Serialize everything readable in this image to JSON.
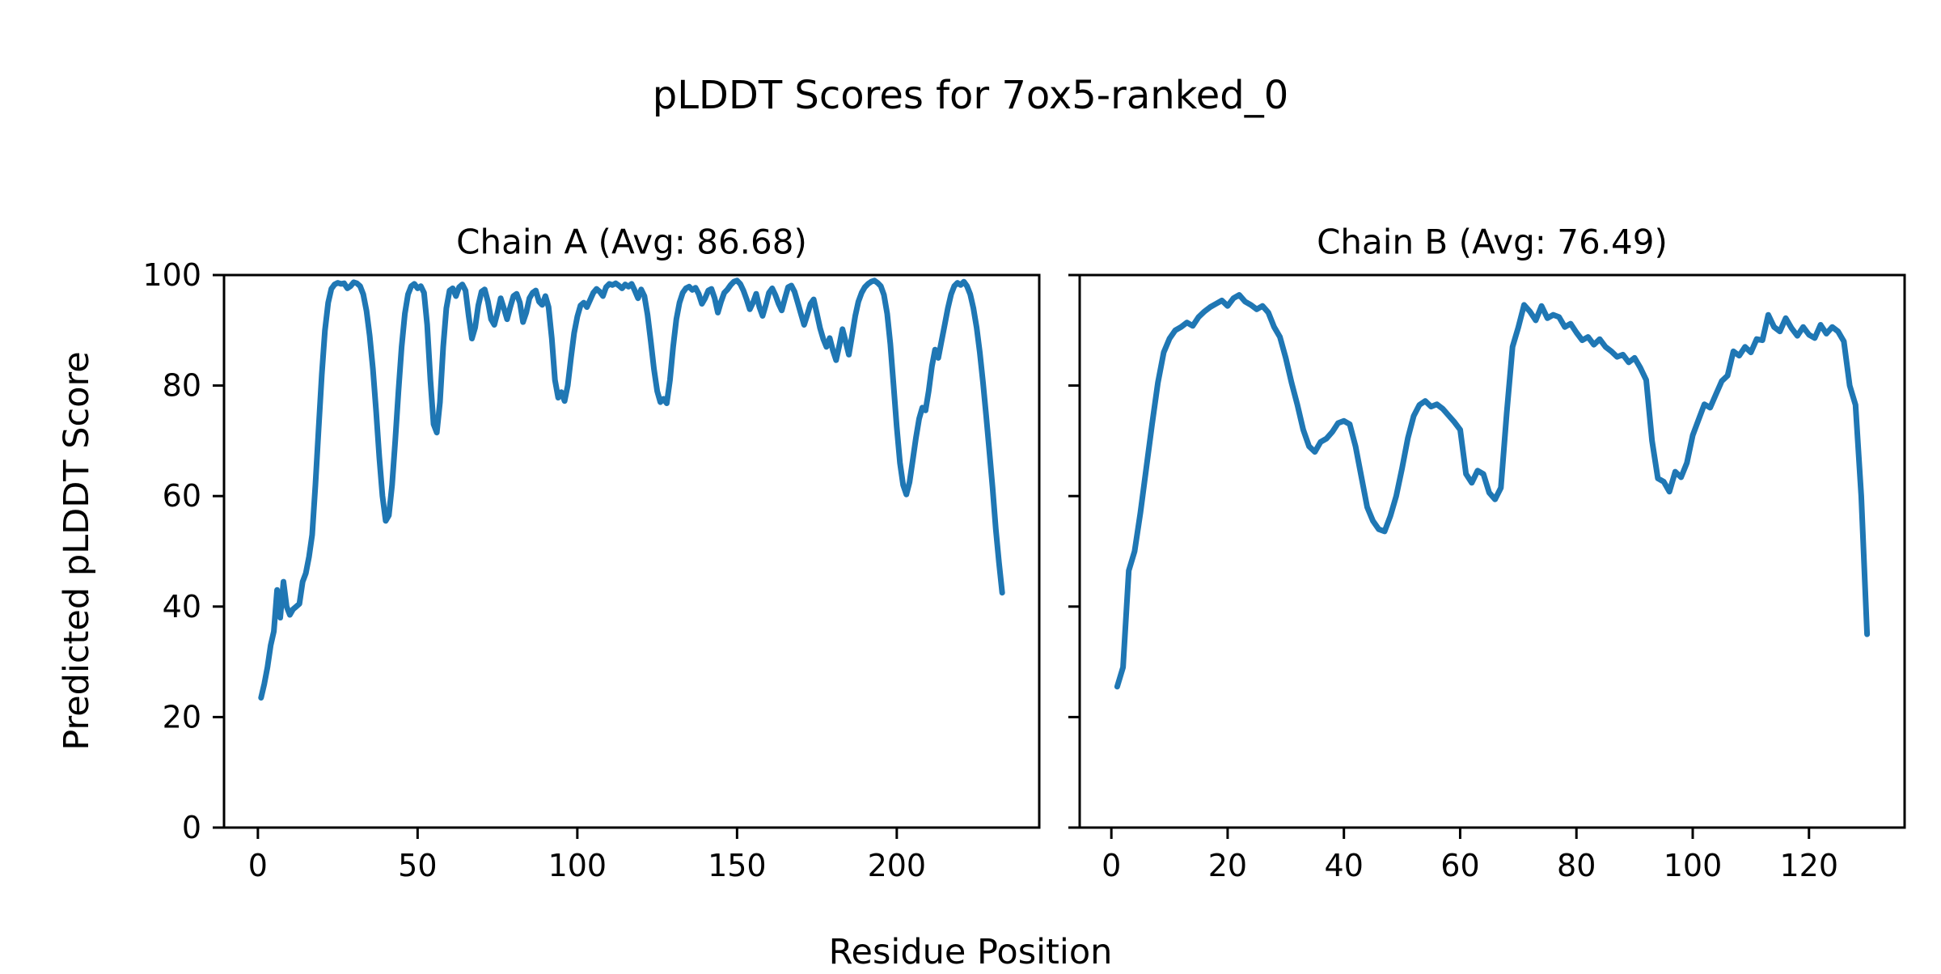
{
  "figure": {
    "suptitle": "pLDDT Scores for 7ox5-ranked_0",
    "xlabel": "Residue Position",
    "ylabel": "Predicted pLDDT Score",
    "line_color": "#1f77b4",
    "background": "#ffffff",
    "axis_color": "#000000"
  },
  "chart_data": [
    {
      "type": "line",
      "title": "Chain A (Avg: 86.68)",
      "avg": 86.68,
      "ylim": [
        0,
        100
      ],
      "yticks": [
        0,
        20,
        40,
        60,
        80,
        100
      ],
      "xticks": [
        0,
        50,
        100,
        150,
        200
      ],
      "x_start": 1,
      "legend": "none",
      "grid": false,
      "values": [
        23.5,
        26,
        29,
        33,
        35.5,
        43,
        38,
        44.5,
        40,
        38.5,
        39.5,
        40,
        40.5,
        44.5,
        46,
        49,
        53,
        62,
        72,
        82,
        90,
        95,
        97.5,
        98.3,
        98.6,
        98.4,
        98.5,
        97.6,
        98,
        98.7,
        98.5,
        98,
        96.5,
        93.5,
        89,
        83,
        75.5,
        67,
        60,
        55.5,
        56.5,
        62,
        70,
        79,
        87,
        93,
        96.5,
        98,
        98.4,
        97.6,
        98,
        96.8,
        91,
        81,
        73,
        71.5,
        77,
        87,
        94,
        97.2,
        97.6,
        96.2,
        97.8,
        98.3,
        97.2,
        92.5,
        88.5,
        90.5,
        94.5,
        97,
        97.4,
        95.2,
        92,
        91,
        93.2,
        95.8,
        94,
        92,
        94.2,
        96.2,
        96.6,
        95,
        91.5,
        93.2,
        95.8,
        96.8,
        97.2,
        95.2,
        94.6,
        96.2,
        94.2,
        88.5,
        81,
        77.8,
        78.8,
        77.2,
        80,
        85,
        89.5,
        92.5,
        94.5,
        95,
        94.2,
        95.5,
        96.8,
        97.5,
        97,
        96.2,
        97.8,
        98.4,
        98.2,
        98.5,
        98.1,
        97.6,
        98.3,
        97.9,
        98.4,
        97.2,
        95.8,
        97.4,
        96.2,
        92.8,
        88,
        83,
        79,
        77,
        77.6,
        76.8,
        81,
        87,
        92,
        95,
        96.8,
        97.6,
        97.9,
        97.3,
        97.7,
        96.6,
        94.8,
        95.8,
        97.2,
        97.5,
        95.8,
        93.2,
        95.2,
        96.8,
        97.4,
        98.2,
        98.8,
        99,
        98.4,
        97.2,
        95.6,
        93.8,
        95,
        96.6,
        94.2,
        92.6,
        94.6,
        96.8,
        97.6,
        96.4,
        94.8,
        93.6,
        95.8,
        97.8,
        98.1,
        97,
        95,
        93,
        91,
        92.8,
        94.8,
        95.6,
        93,
        90.4,
        88.4,
        87,
        88.6,
        86.4,
        84.6,
        87.2,
        90.2,
        88,
        85.6,
        89,
        92.6,
        95.2,
        96.8,
        97.8,
        98.4,
        98.8,
        99,
        98.6,
        98,
        96.4,
        93,
        87.5,
        80,
        72.5,
        66,
        62,
        60.3,
        62.5,
        66.5,
        70.5,
        74,
        76,
        75.5,
        79,
        83.5,
        86.5,
        85,
        88,
        91,
        94,
        96.5,
        98,
        98.6,
        98.2,
        98.8,
        98,
        96.5,
        94,
        90.5,
        86,
        80.5,
        74.5,
        68,
        61.5,
        54,
        48,
        42.5
      ]
    },
    {
      "type": "line",
      "title": "Chain B (Avg: 76.49)",
      "avg": 76.49,
      "ylim": [
        0,
        100
      ],
      "yticks": [
        0,
        20,
        40,
        60,
        80,
        100
      ],
      "xticks": [
        0,
        20,
        40,
        60,
        80,
        100,
        120
      ],
      "x_start": 1,
      "legend": "none",
      "grid": false,
      "values": [
        25.5,
        29,
        46.5,
        50,
        57,
        65,
        73,
        80.5,
        86,
        88.5,
        90,
        90.6,
        91.4,
        90.8,
        92.4,
        93.4,
        94.2,
        94.8,
        95.4,
        94.4,
        95.8,
        96.4,
        95.2,
        94.6,
        93.8,
        94.4,
        93.2,
        90.6,
        88.8,
        85,
        80.5,
        76.5,
        72,
        69,
        68,
        69.8,
        70.4,
        71.6,
        73.2,
        73.6,
        73,
        69,
        63.5,
        58,
        55.5,
        54,
        53.6,
        56.4,
        60,
        65,
        70.5,
        74.5,
        76.5,
        77.2,
        76.2,
        76.6,
        75.8,
        74.6,
        73.4,
        72,
        64,
        62.4,
        64.6,
        64,
        60.6,
        59.4,
        61.5,
        75,
        87,
        90.5,
        94.6,
        93.4,
        91.8,
        94.4,
        92.2,
        92.8,
        92.4,
        90.6,
        91.2,
        89.6,
        88.2,
        88.8,
        87.4,
        88.4,
        87,
        86.2,
        85.2,
        85.6,
        84.2,
        85,
        83.2,
        81,
        70,
        63.2,
        62.6,
        60.8,
        64.4,
        63.4,
        66,
        71,
        73.8,
        76.6,
        76,
        78.4,
        80.8,
        81.8,
        86.2,
        85.4,
        87,
        86,
        88.4,
        88.2,
        92.8,
        90.6,
        89.8,
        92.2,
        90.4,
        89,
        90.6,
        89.2,
        88.6,
        91,
        89.4,
        90.6,
        89.8,
        88,
        80,
        76.5,
        60,
        35
      ]
    }
  ]
}
